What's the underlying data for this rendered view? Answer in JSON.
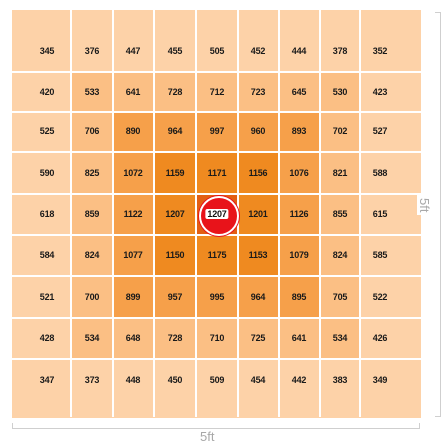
{
  "grid": {
    "rows": [
      [
        345,
        376,
        447,
        455,
        505,
        452,
        444,
        378,
        352
      ],
      [
        420,
        533,
        641,
        728,
        712,
        723,
        645,
        530,
        423
      ],
      [
        525,
        706,
        890,
        964,
        997,
        960,
        893,
        702,
        527
      ],
      [
        590,
        825,
        1072,
        1159,
        1171,
        1156,
        1076,
        821,
        588
      ],
      [
        618,
        859,
        1122,
        1207,
        1207,
        1201,
        1126,
        855,
        615
      ],
      [
        584,
        824,
        1077,
        1150,
        1175,
        1153,
        1079,
        824,
        585
      ],
      [
        521,
        700,
        899,
        957,
        995,
        964,
        895,
        705,
        522
      ],
      [
        428,
        534,
        648,
        728,
        710,
        725,
        641,
        534,
        426
      ],
      [
        347,
        373,
        448,
        450,
        509,
        454,
        442,
        383,
        349
      ]
    ],
    "center_marker": {
      "row": 4,
      "col": 4,
      "color": "#e8131a"
    },
    "colors": {
      "outer": "#fdd2a8",
      "ring1": "#fbbf84",
      "ring2": "#f6a04a",
      "ring3": "#ef8a20",
      "center": "#e25f14"
    }
  },
  "dimensions": {
    "bottom_label": "5ft",
    "right_label": "5ft"
  }
}
